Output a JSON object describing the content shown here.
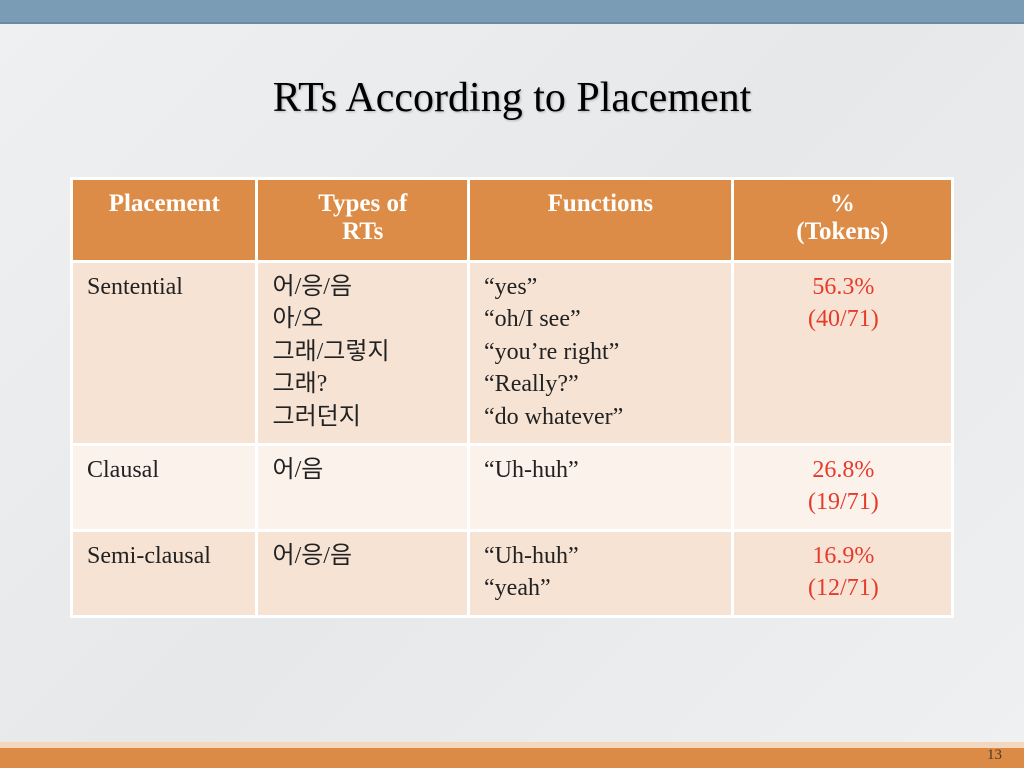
{
  "title": "RTs According to Placement",
  "pageNumber": "13",
  "colors": {
    "header_bg": "#dd8c47",
    "header_text": "#ffffff",
    "row_alt1": "#f6e3d4",
    "row_alt2": "#fbf2ec",
    "pct_text": "#e63a2a",
    "top_bar": "#7b9cb5",
    "bottom_bar": "#dc8b46",
    "bottom_border": "#f3d7be",
    "title_color": "#000000",
    "body_bg": "#eef0f2"
  },
  "typography": {
    "title_fontsize": 42,
    "header_fontsize": 25,
    "cell_fontsize": 24,
    "footer_fontsize": 15,
    "font_family": "Georgia"
  },
  "table": {
    "type": "table",
    "columns": [
      {
        "label": "Placement",
        "width_pct": 21,
        "align": "left"
      },
      {
        "label": "Types of\nRTs",
        "width_pct": 24,
        "align": "left"
      },
      {
        "label": "Functions",
        "width_pct": 30,
        "align": "left"
      },
      {
        "label": "%\n(Tokens)",
        "width_pct": 25,
        "align": "center"
      }
    ],
    "rows": [
      {
        "shade": "a",
        "placement": "Sentential",
        "types": "어/응/음\n아/오\n그래/그렇지\n그래?\n그러던지",
        "functions": "“yes”\n“oh/I see”\n“you’re right”\n“Really?”\n“do whatever”",
        "pct": "56.3%\n(40/71)"
      },
      {
        "shade": "b",
        "placement": "Clausal",
        "types": "어/음",
        "functions": "“Uh-huh”",
        "pct": "26.8%\n(19/71)"
      },
      {
        "shade": "a",
        "placement": "Semi-clausal",
        "types": "어/응/음",
        "functions": "“Uh-huh”\n“yeah”",
        "pct": "16.9%\n(12/71)"
      }
    ]
  }
}
